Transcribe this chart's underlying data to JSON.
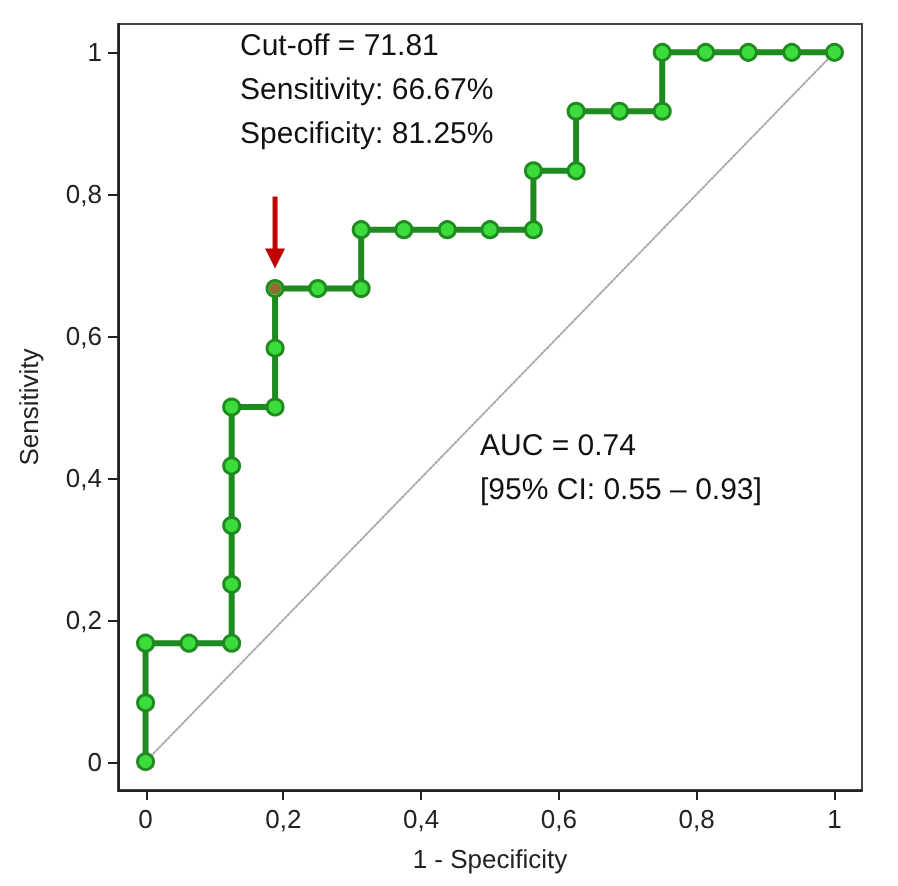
{
  "chart_data": {
    "type": "line",
    "xlabel": "1 - Specificity",
    "ylabel": "Sensitivity",
    "xlim": [
      -0.04,
      1.04
    ],
    "ylim": [
      -0.04,
      1.04
    ],
    "xticks": [
      0,
      {
        "value": 0.2,
        "label": "0,2"
      },
      {
        "value": 0.4,
        "label": "0,4"
      },
      {
        "value": 0.6,
        "label": "0,6"
      },
      {
        "value": 0.8,
        "label": "0,8"
      },
      1
    ],
    "yticks": [
      0,
      {
        "value": 0.2,
        "label": "0,2"
      },
      {
        "value": 0.4,
        "label": "0,4"
      },
      {
        "value": 0.6,
        "label": "0,6"
      },
      {
        "value": 0.8,
        "label": "0,8"
      },
      1
    ],
    "grid": false,
    "marker": "circle",
    "line_style": "solid",
    "series": [
      {
        "color": "#a9a9a9",
        "line_style": "dotted",
        "marker": "none",
        "x": [
          0,
          1
        ],
        "values": [
          0,
          1
        ]
      },
      {
        "color": "#1f8a1f",
        "x": [
          0,
          0,
          0,
          0.063,
          0.125,
          0.125,
          0.125,
          0.125,
          0.125,
          0.188,
          0.188,
          0.188,
          0.25,
          0.313,
          0.313,
          0.375,
          0.438,
          0.5,
          0.563,
          0.563,
          0.625,
          0.625,
          0.688,
          0.75,
          0.75,
          0.813,
          0.875,
          0.938,
          1
        ],
        "values": [
          0,
          0.083,
          0.167,
          0.167,
          0.167,
          0.25,
          0.333,
          0.417,
          0.5,
          0.5,
          0.583,
          0.667,
          0.667,
          0.667,
          0.75,
          0.75,
          0.75,
          0.75,
          0.75,
          0.833,
          0.833,
          0.917,
          0.917,
          0.917,
          1,
          1,
          1,
          1,
          1
        ]
      },
      {
        "type": "scatter",
        "color": "#a0522d",
        "x": [
          0.188
        ],
        "values": [
          0.667
        ]
      }
    ],
    "annotations": [
      "Cut-off = 71.81\nSensitivity: 66.67%\nSpecificity: 81.25%",
      "AUC = 0.74\n[95% CI: 0.55 – 0.93]"
    ]
  }
}
